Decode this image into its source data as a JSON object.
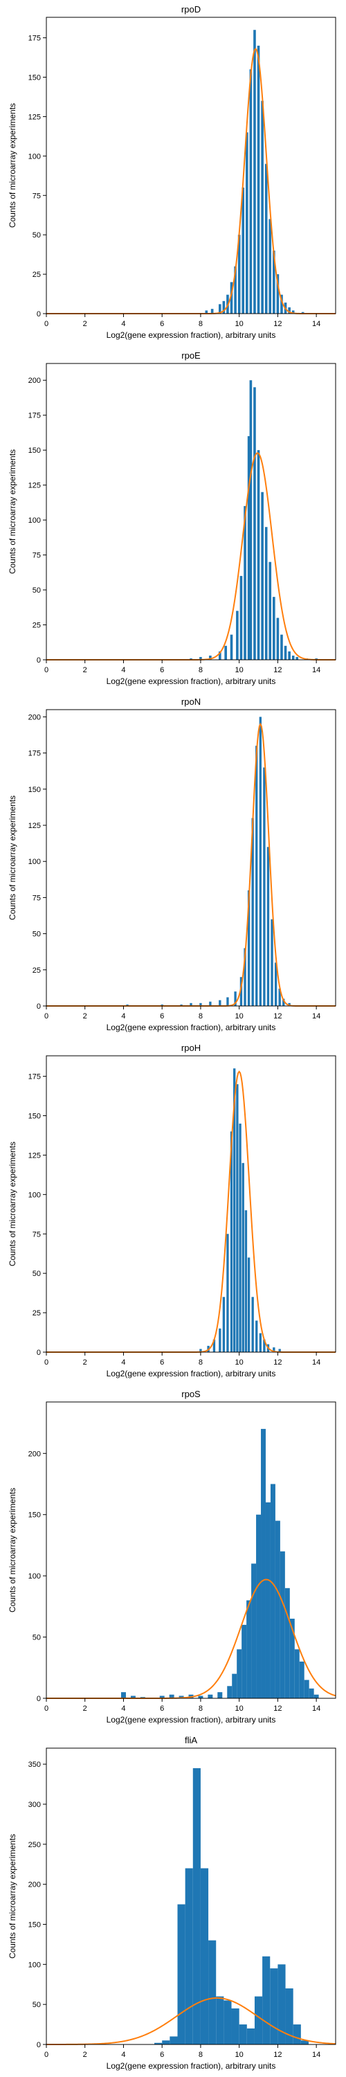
{
  "chart_data": [
    {
      "type": "bar",
      "title": "rpoD",
      "xlabel": "Log2(gene expression fraction), arbitrary units",
      "ylabel": "Counts of microarray experiments",
      "xlim": [
        0,
        15
      ],
      "ylim": [
        0,
        188
      ],
      "x_ticks": [
        0,
        2,
        4,
        6,
        8,
        10,
        12,
        14
      ],
      "y_ticks": [
        0,
        25,
        50,
        75,
        100,
        125,
        150,
        175
      ],
      "bin_width": 0.13,
      "hist": [
        [
          8.3,
          2
        ],
        [
          8.6,
          3
        ],
        [
          9.0,
          6
        ],
        [
          9.2,
          8
        ],
        [
          9.4,
          12
        ],
        [
          9.6,
          20
        ],
        [
          9.8,
          30
        ],
        [
          10.0,
          50
        ],
        [
          10.2,
          80
        ],
        [
          10.4,
          115
        ],
        [
          10.6,
          155
        ],
        [
          10.8,
          180
        ],
        [
          11.0,
          170
        ],
        [
          11.2,
          135
        ],
        [
          11.4,
          95
        ],
        [
          11.6,
          60
        ],
        [
          11.8,
          40
        ],
        [
          12.0,
          25
        ],
        [
          12.2,
          12
        ],
        [
          12.4,
          7
        ],
        [
          12.6,
          4
        ],
        [
          12.8,
          2
        ],
        [
          13.3,
          1
        ]
      ],
      "fit": {
        "mu": 10.85,
        "sigma": 0.55,
        "peak": 168
      }
    },
    {
      "type": "bar",
      "title": "rpoE",
      "xlabel": "Log2(gene expression fraction), arbitrary units",
      "ylabel": "Counts of microarray experiments",
      "xlim": [
        0,
        15
      ],
      "ylim": [
        0,
        212
      ],
      "x_ticks": [
        0,
        2,
        4,
        6,
        8,
        10,
        12,
        14
      ],
      "y_ticks": [
        0,
        25,
        50,
        75,
        100,
        125,
        150,
        175,
        200
      ],
      "bin_width": 0.13,
      "hist": [
        [
          7.5,
          1
        ],
        [
          8.0,
          2
        ],
        [
          8.5,
          3
        ],
        [
          9.0,
          6
        ],
        [
          9.3,
          10
        ],
        [
          9.6,
          18
        ],
        [
          9.9,
          35
        ],
        [
          10.1,
          60
        ],
        [
          10.3,
          110
        ],
        [
          10.5,
          160
        ],
        [
          10.6,
          200
        ],
        [
          10.8,
          195
        ],
        [
          11.0,
          150
        ],
        [
          11.2,
          120
        ],
        [
          11.4,
          95
        ],
        [
          11.6,
          70
        ],
        [
          11.8,
          45
        ],
        [
          12.0,
          30
        ],
        [
          12.2,
          18
        ],
        [
          12.4,
          10
        ],
        [
          12.6,
          6
        ],
        [
          12.8,
          3
        ],
        [
          13.0,
          2
        ],
        [
          13.5,
          1
        ],
        [
          14.0,
          1
        ]
      ],
      "fit": {
        "mu": 10.95,
        "sigma": 0.75,
        "peak": 148
      }
    },
    {
      "type": "bar",
      "title": "rpoN",
      "xlabel": "Log2(gene expression fraction), arbitrary units",
      "ylabel": "Counts of microarray experiments",
      "xlim": [
        0,
        15
      ],
      "ylim": [
        0,
        205
      ],
      "x_ticks": [
        0,
        2,
        4,
        6,
        8,
        10,
        12,
        14
      ],
      "y_ticks": [
        0,
        25,
        50,
        75,
        100,
        125,
        150,
        175,
        200
      ],
      "bin_width": 0.12,
      "hist": [
        [
          4.2,
          1
        ],
        [
          6.0,
          1
        ],
        [
          7.0,
          1
        ],
        [
          7.5,
          2
        ],
        [
          8.0,
          2
        ],
        [
          8.5,
          3
        ],
        [
          9.0,
          4
        ],
        [
          9.4,
          6
        ],
        [
          9.8,
          10
        ],
        [
          10.1,
          20
        ],
        [
          10.3,
          40
        ],
        [
          10.5,
          80
        ],
        [
          10.7,
          130
        ],
        [
          10.9,
          180
        ],
        [
          11.1,
          200
        ],
        [
          11.3,
          165
        ],
        [
          11.5,
          110
        ],
        [
          11.7,
          60
        ],
        [
          11.9,
          30
        ],
        [
          12.1,
          12
        ],
        [
          12.3,
          5
        ],
        [
          12.6,
          2
        ]
      ],
      "fit": {
        "mu": 11.1,
        "sigma": 0.43,
        "peak": 195
      }
    },
    {
      "type": "bar",
      "title": "rpoH",
      "xlabel": "Log2(gene expression fraction), arbitrary units",
      "ylabel": "Counts of microarray experiments",
      "xlim": [
        0,
        15
      ],
      "ylim": [
        0,
        188
      ],
      "x_ticks": [
        0,
        2,
        4,
        6,
        8,
        10,
        12,
        14
      ],
      "y_ticks": [
        0,
        25,
        50,
        75,
        100,
        125,
        150,
        175
      ],
      "bin_width": 0.12,
      "hist": [
        [
          8.0,
          2
        ],
        [
          8.4,
          4
        ],
        [
          8.7,
          8
        ],
        [
          9.0,
          15
        ],
        [
          9.2,
          35
        ],
        [
          9.4,
          75
        ],
        [
          9.6,
          140
        ],
        [
          9.75,
          180
        ],
        [
          9.9,
          170
        ],
        [
          10.05,
          145
        ],
        [
          10.2,
          120
        ],
        [
          10.35,
          90
        ],
        [
          10.5,
          60
        ],
        [
          10.7,
          35
        ],
        [
          10.9,
          20
        ],
        [
          11.1,
          12
        ],
        [
          11.3,
          8
        ],
        [
          11.5,
          5
        ],
        [
          11.8,
          3
        ],
        [
          12.1,
          2
        ]
      ],
      "fit": {
        "mu": 10.0,
        "sigma": 0.52,
        "peak": 178
      }
    },
    {
      "type": "bar",
      "title": "rpoS",
      "xlabel": "Log2(gene expression fraction), arbitrary units",
      "ylabel": "Counts of microarray experiments",
      "xlim": [
        0,
        15
      ],
      "ylim": [
        0,
        242
      ],
      "x_ticks": [
        0,
        2,
        4,
        6,
        8,
        10,
        12,
        14
      ],
      "y_ticks": [
        0,
        50,
        100,
        150,
        200
      ],
      "bin_width": 0.25,
      "hist": [
        [
          4.0,
          5
        ],
        [
          4.5,
          2
        ],
        [
          5.0,
          1
        ],
        [
          6.0,
          2
        ],
        [
          6.5,
          3
        ],
        [
          7.0,
          2
        ],
        [
          7.5,
          3
        ],
        [
          8.0,
          2
        ],
        [
          8.5,
          3
        ],
        [
          9.0,
          5
        ],
        [
          9.5,
          10
        ],
        [
          9.75,
          20
        ],
        [
          10.0,
          40
        ],
        [
          10.25,
          60
        ],
        [
          10.5,
          80
        ],
        [
          10.75,
          110
        ],
        [
          11.0,
          150
        ],
        [
          11.25,
          220
        ],
        [
          11.5,
          160
        ],
        [
          11.75,
          175
        ],
        [
          12.0,
          145
        ],
        [
          12.25,
          120
        ],
        [
          12.5,
          90
        ],
        [
          12.75,
          65
        ],
        [
          13.0,
          40
        ],
        [
          13.25,
          30
        ],
        [
          13.5,
          15
        ],
        [
          13.75,
          8
        ],
        [
          14.0,
          3
        ]
      ],
      "fit": {
        "mu": 11.4,
        "sigma": 1.3,
        "peak": 97
      }
    },
    {
      "type": "bar",
      "title": "fliA",
      "xlabel": "Log2(gene expression fraction), arbitrary units",
      "ylabel": "Counts of microarray experiments",
      "xlim": [
        0,
        15
      ],
      "ylim": [
        0,
        370
      ],
      "x_ticks": [
        0,
        2,
        4,
        6,
        8,
        10,
        12,
        14
      ],
      "y_ticks": [
        0,
        50,
        100,
        150,
        200,
        250,
        300,
        350
      ],
      "bin_width": 0.4,
      "hist": [
        [
          5.8,
          2
        ],
        [
          6.2,
          5
        ],
        [
          6.6,
          10
        ],
        [
          7.0,
          175
        ],
        [
          7.4,
          220
        ],
        [
          7.8,
          345
        ],
        [
          8.2,
          220
        ],
        [
          8.6,
          130
        ],
        [
          9.0,
          60
        ],
        [
          9.4,
          55
        ],
        [
          9.8,
          45
        ],
        [
          10.2,
          25
        ],
        [
          10.6,
          20
        ],
        [
          11.0,
          60
        ],
        [
          11.4,
          110
        ],
        [
          11.8,
          95
        ],
        [
          12.2,
          100
        ],
        [
          12.6,
          70
        ],
        [
          13.0,
          25
        ],
        [
          13.4,
          5
        ]
      ],
      "fit": {
        "mu": 8.85,
        "sigma": 2.1,
        "peak": 58
      }
    }
  ]
}
